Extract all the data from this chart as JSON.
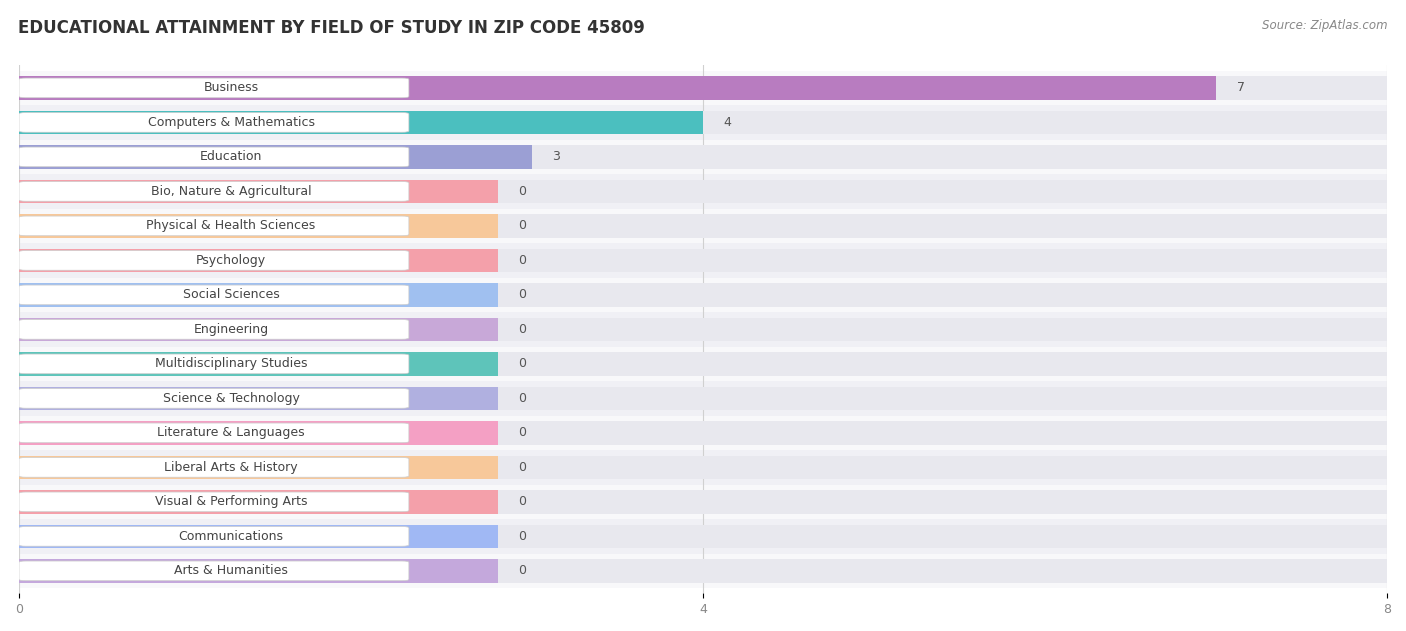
{
  "title": "EDUCATIONAL ATTAINMENT BY FIELD OF STUDY IN ZIP CODE 45809",
  "source": "Source: ZipAtlas.com",
  "categories": [
    "Business",
    "Computers & Mathematics",
    "Education",
    "Bio, Nature & Agricultural",
    "Physical & Health Sciences",
    "Psychology",
    "Social Sciences",
    "Engineering",
    "Multidisciplinary Studies",
    "Science & Technology",
    "Literature & Languages",
    "Liberal Arts & History",
    "Visual & Performing Arts",
    "Communications",
    "Arts & Humanities"
  ],
  "values": [
    7,
    4,
    3,
    0,
    0,
    0,
    0,
    0,
    0,
    0,
    0,
    0,
    0,
    0,
    0
  ],
  "bar_colors": [
    "#b87cc0",
    "#4bbfbf",
    "#9b9fd4",
    "#f4a0aa",
    "#f7c89a",
    "#f4a0aa",
    "#a0c0f0",
    "#c8a8d8",
    "#5ec4ba",
    "#b0b0e0",
    "#f4a0c4",
    "#f7c89a",
    "#f4a0aa",
    "#a0b8f4",
    "#c4a8dc"
  ],
  "xlim": [
    0,
    8
  ],
  "xticks": [
    0,
    4,
    8
  ],
  "row_colors": [
    "#f8f8fa",
    "#f0f0f5"
  ],
  "bar_bg_color": "#e8e8ee",
  "zero_bar_width": 2.8,
  "title_fontsize": 12,
  "label_fontsize": 9,
  "value_fontsize": 9,
  "bar_height": 0.68
}
